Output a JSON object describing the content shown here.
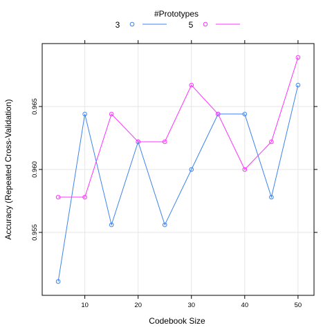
{
  "chart_data": {
    "type": "line",
    "title": "",
    "xlabel": "Codebook Size",
    "ylabel": "Accuracy (Repeated Cross-Validation)",
    "legend": {
      "title": "#Prototypes",
      "position": "top"
    },
    "x": [
      5,
      10,
      15,
      20,
      25,
      30,
      35,
      40,
      45,
      50
    ],
    "xlim": [
      2,
      53
    ],
    "ylim": [
      0.95,
      0.97
    ],
    "xticks": [
      10,
      20,
      30,
      40,
      50
    ],
    "yticks": [
      0.955,
      0.96,
      0.965
    ],
    "xtick_labels": [
      "10",
      "20",
      "30",
      "40",
      "50"
    ],
    "ytick_labels": [
      "0.955",
      "0.960",
      "0.965"
    ],
    "grid": true,
    "series": [
      {
        "name": "3",
        "color": "#3b83f0",
        "marker": "open-circle",
        "values": [
          0.9511,
          0.9644,
          0.9556,
          0.9622,
          0.9556,
          0.96,
          0.9644,
          0.9644,
          0.9578,
          0.9667
        ]
      },
      {
        "name": "5",
        "color": "#ff30ff",
        "marker": "open-circle",
        "values": [
          0.9578,
          0.9578,
          0.9644,
          0.9622,
          0.9622,
          0.9667,
          0.9644,
          0.96,
          0.9622,
          0.9689
        ]
      }
    ]
  }
}
